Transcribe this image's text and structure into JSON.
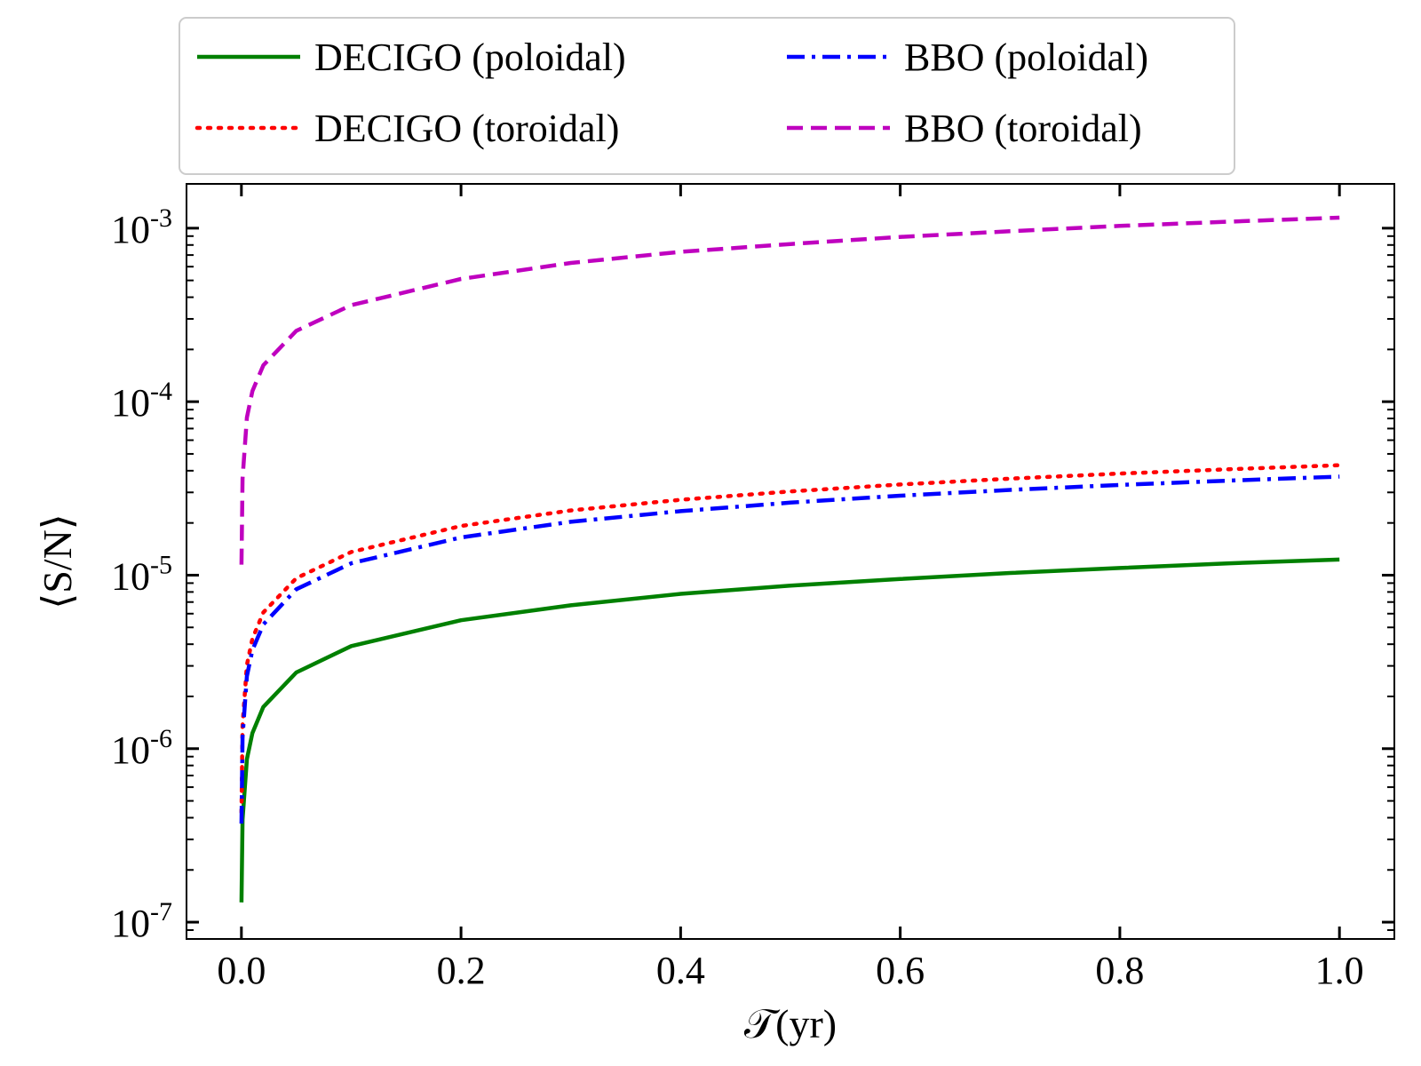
{
  "chart_data": {
    "type": "line",
    "title": "",
    "xlabel": "𝒯(yr)",
    "ylabel": "⟨S/N⟩",
    "xlim": [
      -0.05,
      1.05
    ],
    "ylim": [
      8e-08,
      0.0018
    ],
    "yscale": "log",
    "grid": false,
    "legend_position": "top (above plot), 2 columns",
    "x_ticks": [
      {
        "value": 0.0,
        "label": "0.0"
      },
      {
        "value": 0.2,
        "label": "0.2"
      },
      {
        "value": 0.4,
        "label": "0.4"
      },
      {
        "value": 0.6,
        "label": "0.6"
      },
      {
        "value": 0.8,
        "label": "0.8"
      },
      {
        "value": 1.0,
        "label": "1.0"
      }
    ],
    "y_ticks": [
      {
        "value": 1e-07,
        "base": "10",
        "exp": "-7"
      },
      {
        "value": 1e-06,
        "base": "10",
        "exp": "-6"
      },
      {
        "value": 1e-05,
        "base": "10",
        "exp": "-5"
      },
      {
        "value": 0.0001,
        "base": "10",
        "exp": "-4"
      },
      {
        "value": 0.001,
        "base": "10",
        "exp": "-3"
      }
    ],
    "series": [
      {
        "name": "DECIGO (poloidal)",
        "color": "#008000",
        "style": "solid",
        "x": [
          0.0001,
          0.001,
          0.005,
          0.01,
          0.02,
          0.05,
          0.1,
          0.2,
          0.3,
          0.4,
          0.5,
          0.6,
          0.7,
          0.8,
          0.9,
          1.0
        ],
        "y": [
          1.3e-07,
          3.9e-07,
          8.7e-07,
          1.23e-06,
          1.74e-06,
          2.75e-06,
          3.9e-06,
          5.5e-06,
          6.7e-06,
          7.8e-06,
          8.7e-06,
          9.5e-06,
          1.03e-05,
          1.1e-05,
          1.17e-05,
          1.23e-05
        ]
      },
      {
        "name": "DECIGO (toroidal)",
        "color": "#ff0000",
        "style": "dotted",
        "x": [
          0.0001,
          0.001,
          0.005,
          0.01,
          0.02,
          0.05,
          0.1,
          0.2,
          0.3,
          0.4,
          0.5,
          0.6,
          0.7,
          0.8,
          0.9,
          1.0
        ],
        "y": [
          4.3e-07,
          1.36e-06,
          3.04e-06,
          4.3e-06,
          6.1e-06,
          9.6e-06,
          1.36e-05,
          1.92e-05,
          2.36e-05,
          2.72e-05,
          3.04e-05,
          3.33e-05,
          3.6e-05,
          3.85e-05,
          4.08e-05,
          4.3e-05
        ]
      },
      {
        "name": "BBO (poloidal)",
        "color": "#0000ff",
        "style": "dashdot",
        "x": [
          0.0001,
          0.001,
          0.005,
          0.01,
          0.02,
          0.05,
          0.1,
          0.2,
          0.3,
          0.4,
          0.5,
          0.6,
          0.7,
          0.8,
          0.9,
          1.0
        ],
        "y": [
          3.7e-07,
          1.17e-06,
          2.62e-06,
          3.7e-06,
          5.2e-06,
          8.3e-06,
          1.17e-05,
          1.65e-05,
          2.03e-05,
          2.34e-05,
          2.62e-05,
          2.87e-05,
          3.1e-05,
          3.31e-05,
          3.51e-05,
          3.7e-05
        ]
      },
      {
        "name": "BBO (toroidal)",
        "color": "#bf00bf",
        "style": "dashed",
        "x": [
          0.0001,
          0.001,
          0.005,
          0.01,
          0.02,
          0.05,
          0.1,
          0.2,
          0.3,
          0.4,
          0.5,
          0.6,
          0.7,
          0.8,
          0.9,
          1.0
        ],
        "y": [
          1.15e-05,
          3.6e-05,
          8.1e-05,
          0.000115,
          0.000162,
          0.000256,
          0.00036,
          0.00051,
          0.00063,
          0.00073,
          0.00081,
          0.00089,
          0.00096,
          0.00103,
          0.00109,
          0.00115
        ]
      }
    ]
  }
}
